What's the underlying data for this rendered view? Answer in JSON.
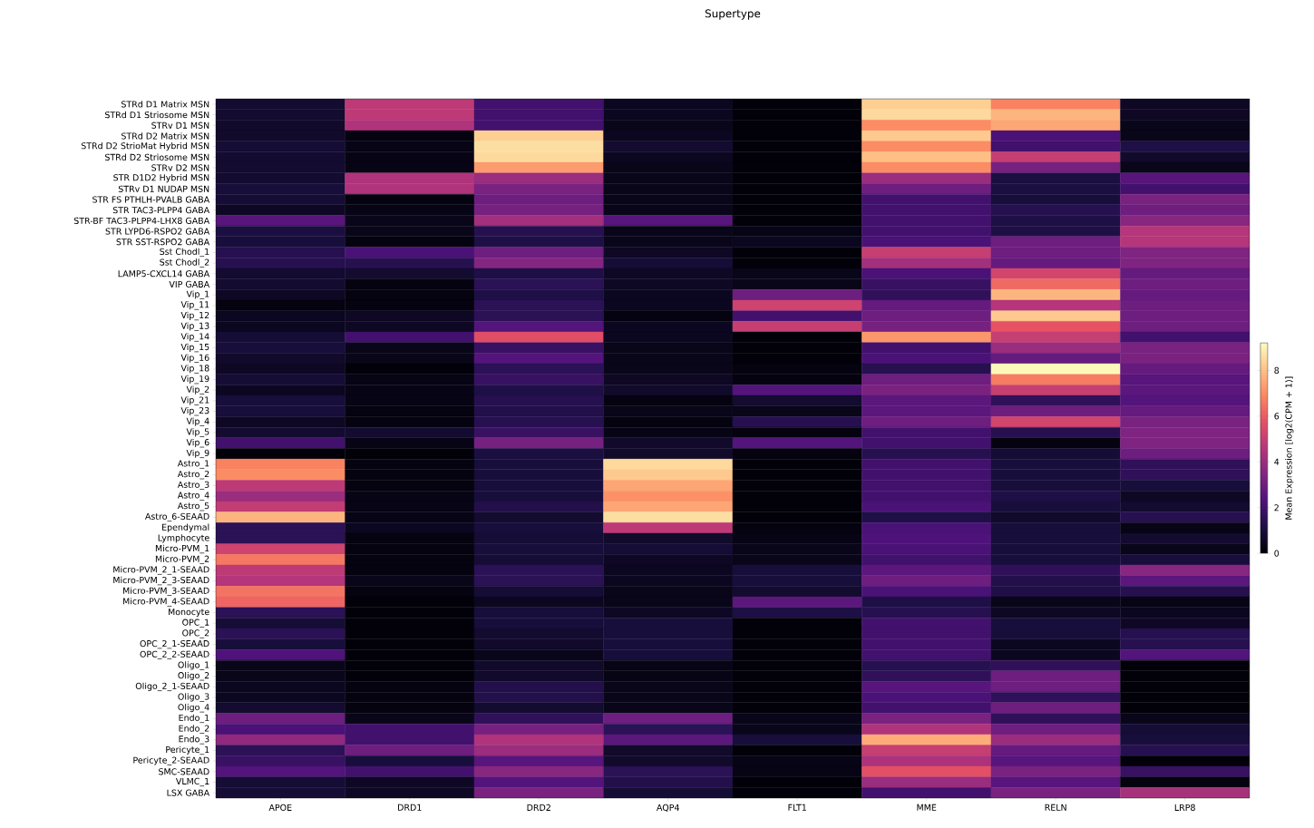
{
  "chart_data": {
    "type": "heatmap",
    "title": "Supertype",
    "clabel": "Mean Expression [log2(CPM + 1)]",
    "categories": [
      "APOE",
      "DRD1",
      "DRD2",
      "AQP4",
      "FLT1",
      "MME",
      "RELN",
      "LRP8"
    ],
    "y_categories": [
      "STRd D1 Matrix MSN",
      "STRd D1 Striosome MSN",
      "STRv D1 MSN",
      "STRd D2 Matrix MSN",
      "STRd D2 StrioMat Hybrid MSN",
      "STRd D2 Striosome MSN",
      "STRv D2 MSN",
      "STR D1D2 Hybrid MSN",
      "STRv D1 NUDAP MSN",
      "STR FS PTHLH-PVALB GABA",
      "STR TAC3-PLPP4 GABA",
      "STR-BF TAC3-PLPP4-LHX8 GABA",
      "STR LYPD6-RSPO2 GABA",
      "STR SST-RSPO2 GABA",
      "Sst Chodl_1",
      "Sst Chodl_2",
      "LAMP5-CXCL14 GABA",
      "VIP GABA",
      "Vip_1",
      "Vip_11",
      "Vip_12",
      "Vip_13",
      "Vip_14",
      "Vip_15",
      "Vip_16",
      "Vip_18",
      "Vip_19",
      "Vip_2",
      "Vip_21",
      "Vip_23",
      "Vip_4",
      "Vip_5",
      "Vip_6",
      "Vip_9",
      "Astro_1",
      "Astro_2",
      "Astro_3",
      "Astro_4",
      "Astro_5",
      "Astro_6-SEAAD",
      "Ependymal",
      "Lymphocyte",
      "Micro-PVM_1",
      "Micro-PVM_2",
      "Micro-PVM_2_1-SEAAD",
      "Micro-PVM_2_3-SEAAD",
      "Micro-PVM_3-SEAAD",
      "Micro-PVM_4-SEAAD",
      "Monocyte",
      "OPC_1",
      "OPC_2",
      "OPC_2_1-SEAAD",
      "OPC_2_2-SEAAD",
      "Oligo_1",
      "Oligo_2",
      "Oligo_2_1-SEAAD",
      "Oligo_3",
      "Oligo_4",
      "Endo_1",
      "Endo_2",
      "Endo_3",
      "Pericyte_1",
      "Pericyte_2-SEAAD",
      "SMC-SEAAD",
      "VLMC_1",
      "LSX GABA"
    ],
    "cells": [
      [
        0.8,
        4.8,
        2.0,
        0.5,
        0.1,
        8.3,
        6.8,
        0.6
      ],
      [
        0.8,
        4.8,
        2.0,
        0.5,
        0.1,
        8.5,
        7.8,
        0.6
      ],
      [
        0.7,
        4.5,
        2.0,
        0.4,
        0.1,
        7.0,
        7.5,
        0.4
      ],
      [
        0.7,
        0.2,
        8.3,
        0.5,
        0.1,
        8.2,
        2.2,
        0.4
      ],
      [
        0.9,
        0.3,
        8.6,
        0.8,
        0.1,
        7.0,
        2.0,
        1.2
      ],
      [
        0.8,
        0.3,
        8.5,
        0.5,
        0.1,
        8.0,
        5.0,
        0.7
      ],
      [
        0.8,
        0.3,
        7.3,
        0.4,
        0.1,
        7.0,
        3.2,
        0.4
      ],
      [
        0.8,
        4.5,
        4.0,
        0.4,
        0.1,
        4.0,
        1.1,
        2.5
      ],
      [
        1.0,
        4.5,
        3.3,
        0.4,
        0.1,
        3.0,
        1.1,
        2.0
      ],
      [
        0.9,
        0.2,
        3.0,
        0.4,
        0.1,
        2.0,
        1.0,
        3.3
      ],
      [
        0.6,
        0.3,
        3.2,
        0.4,
        0.1,
        2.0,
        1.4,
        3.0
      ],
      [
        2.5,
        0.4,
        4.2,
        2.5,
        0.1,
        2.0,
        1.2,
        3.6
      ],
      [
        1.1,
        0.4,
        1.4,
        0.4,
        0.3,
        2.0,
        1.2,
        4.6
      ],
      [
        1.0,
        0.2,
        1.2,
        0.4,
        0.5,
        2.2,
        3.0,
        4.6
      ],
      [
        1.4,
        2.2,
        3.0,
        0.6,
        0.1,
        5.0,
        3.0,
        3.4
      ],
      [
        1.4,
        1.4,
        3.5,
        0.9,
        0.1,
        4.2,
        2.8,
        3.4
      ],
      [
        0.8,
        0.8,
        1.2,
        0.6,
        0.4,
        2.2,
        5.3,
        2.8
      ],
      [
        0.8,
        0.2,
        1.5,
        0.6,
        0.4,
        1.8,
        6.3,
        3.0
      ],
      [
        0.6,
        0.2,
        1.2,
        0.5,
        3.0,
        1.6,
        7.8,
        2.8
      ],
      [
        0.2,
        0.2,
        1.5,
        0.5,
        5.2,
        2.8,
        4.6,
        3.0
      ],
      [
        0.5,
        0.6,
        1.5,
        0.2,
        2.0,
        3.0,
        8.2,
        3.0
      ],
      [
        0.5,
        0.6,
        2.4,
        0.5,
        5.0,
        3.2,
        5.8,
        3.0
      ],
      [
        0.9,
        2.0,
        5.6,
        0.5,
        0.1,
        7.2,
        5.0,
        2.0
      ],
      [
        1.0,
        0.4,
        1.8,
        0.4,
        0.1,
        2.0,
        4.0,
        3.3
      ],
      [
        0.7,
        0.4,
        2.4,
        0.4,
        0.1,
        2.2,
        2.8,
        3.3
      ],
      [
        0.6,
        0.1,
        1.5,
        0.4,
        0.2,
        1.4,
        9.1,
        2.8
      ],
      [
        0.9,
        0.3,
        1.8,
        0.6,
        0.2,
        3.0,
        6.7,
        2.5
      ],
      [
        0.5,
        0.3,
        1.2,
        0.7,
        2.4,
        3.3,
        5.0,
        2.6
      ],
      [
        1.0,
        0.3,
        1.4,
        0.2,
        0.8,
        2.6,
        1.6,
        2.4
      ],
      [
        1.0,
        0.2,
        1.3,
        0.4,
        0.4,
        2.6,
        3.0,
        2.8
      ],
      [
        0.6,
        0.2,
        1.4,
        0.2,
        1.4,
        3.0,
        5.3,
        3.3
      ],
      [
        0.8,
        0.8,
        1.8,
        0.3,
        0.2,
        2.0,
        1.4,
        3.4
      ],
      [
        2.0,
        0.3,
        3.2,
        0.7,
        2.4,
        2.0,
        0.2,
        3.4
      ],
      [
        0.1,
        0.1,
        1.1,
        0.7,
        0.2,
        1.4,
        0.9,
        3.0
      ],
      [
        6.8,
        0.2,
        1.0,
        8.5,
        0.1,
        2.0,
        1.0,
        1.6
      ],
      [
        7.0,
        0.2,
        1.0,
        8.2,
        0.1,
        2.0,
        1.0,
        1.6
      ],
      [
        4.8,
        0.2,
        1.0,
        7.5,
        0.1,
        2.0,
        1.0,
        1.0
      ],
      [
        4.0,
        0.3,
        1.0,
        7.1,
        0.1,
        2.0,
        1.2,
        0.6
      ],
      [
        4.9,
        0.3,
        1.3,
        7.5,
        0.1,
        2.2,
        1.0,
        0.8
      ],
      [
        7.8,
        0.3,
        0.8,
        8.6,
        0.1,
        1.2,
        0.7,
        1.4
      ],
      [
        1.5,
        0.5,
        1.0,
        4.8,
        0.2,
        2.2,
        1.0,
        0.3
      ],
      [
        1.5,
        0.2,
        0.9,
        0.7,
        0.3,
        2.3,
        1.0,
        0.8
      ],
      [
        5.2,
        0.2,
        1.0,
        0.9,
        0.4,
        2.2,
        1.0,
        0.4
      ],
      [
        6.6,
        0.2,
        0.9,
        0.6,
        0.4,
        2.0,
        1.0,
        1.0
      ],
      [
        4.8,
        0.2,
        1.5,
        0.5,
        1.0,
        2.6,
        1.6,
        3.6
      ],
      [
        4.6,
        0.4,
        1.5,
        0.5,
        1.0,
        3.0,
        1.3,
        2.6
      ],
      [
        6.5,
        0.2,
        0.9,
        0.4,
        0.8,
        2.2,
        1.2,
        1.4
      ],
      [
        6.2,
        0.1,
        0.5,
        0.4,
        2.6,
        1.2,
        0.4,
        0.3
      ],
      [
        1.5,
        0.1,
        1.0,
        0.6,
        1.2,
        1.4,
        0.6,
        0.5
      ],
      [
        0.9,
        0.1,
        1.0,
        1.0,
        0.1,
        2.0,
        1.0,
        0.6
      ],
      [
        1.5,
        0.1,
        0.8,
        1.0,
        0.1,
        2.0,
        1.0,
        1.4
      ],
      [
        1.0,
        0.1,
        0.7,
        1.0,
        0.1,
        2.0,
        0.5,
        1.4
      ],
      [
        2.3,
        0.1,
        0.4,
        1.0,
        0.1,
        2.0,
        0.5,
        2.4
      ],
      [
        0.4,
        0.1,
        0.7,
        0.3,
        0.1,
        1.4,
        1.6,
        0.1
      ],
      [
        0.4,
        0.1,
        0.7,
        0.3,
        0.1,
        1.6,
        3.0,
        0.1
      ],
      [
        0.5,
        0.2,
        1.3,
        0.4,
        0.1,
        2.5,
        3.0,
        0.1
      ],
      [
        0.5,
        0.2,
        1.3,
        0.4,
        0.1,
        2.2,
        1.6,
        0.1
      ],
      [
        0.8,
        0.2,
        0.8,
        0.4,
        0.1,
        2.0,
        3.0,
        0.1
      ],
      [
        3.0,
        0.4,
        1.6,
        3.0,
        0.4,
        3.3,
        1.6,
        0.4
      ],
      [
        2.2,
        2.0,
        3.2,
        1.5,
        0.4,
        4.5,
        3.0,
        0.9
      ],
      [
        3.8,
        2.0,
        4.5,
        2.6,
        1.0,
        7.6,
        4.0,
        1.0
      ],
      [
        1.5,
        3.0,
        4.0,
        0.7,
        0.1,
        5.0,
        2.8,
        1.4
      ],
      [
        1.8,
        1.0,
        2.5,
        0.7,
        0.3,
        4.4,
        2.5,
        0.1
      ],
      [
        2.4,
        2.0,
        3.6,
        1.5,
        0.3,
        5.7,
        3.3,
        1.8
      ],
      [
        0.9,
        0.6,
        2.4,
        1.3,
        0.1,
        4.0,
        2.5,
        0.2
      ],
      [
        0.9,
        0.6,
        3.3,
        0.9,
        0.1,
        2.0,
        3.3,
        4.3
      ]
    ],
    "clim": [
      0,
      9.2
    ],
    "cticks": [
      0,
      2,
      4,
      6,
      8
    ]
  }
}
